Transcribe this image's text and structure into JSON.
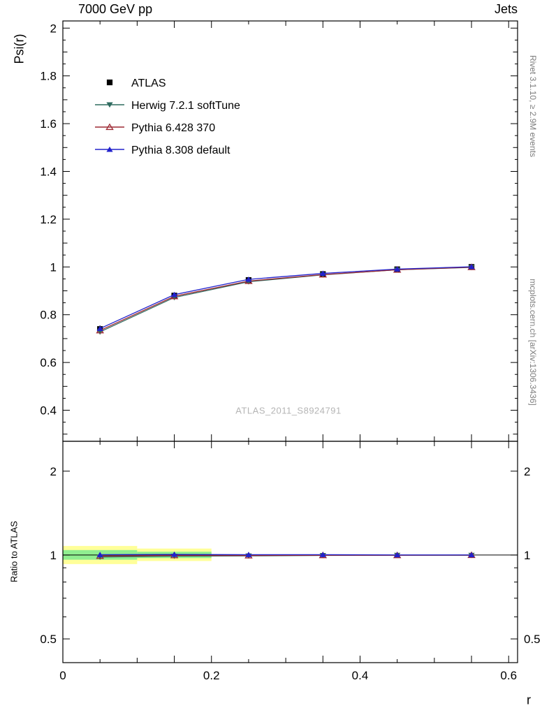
{
  "header": {
    "left": "7000 GeV pp",
    "right": "Jets"
  },
  "side_notes": {
    "top_right": "Rivet 3.1.10, ≥ 2.9M events",
    "bottom_right": "mcplots.cern.ch [arXiv:1306.3436]"
  },
  "watermark": "ATLAS_2011_S8924791",
  "chart_data": {
    "type": "line",
    "xlabel": "r",
    "ylabel": "Psi(r)",
    "ratio_ylabel": "Ratio to ATLAS",
    "x": [
      0.05,
      0.15,
      0.25,
      0.35,
      0.45,
      0.55
    ],
    "xlim": [
      0,
      0.612
    ],
    "xticks": [
      0,
      0.2,
      0.4,
      0.6
    ],
    "main_ylim": [
      0.27,
      2.03
    ],
    "main_yticks": [
      0.4,
      0.6,
      0.8,
      1,
      1.2,
      1.4,
      1.6,
      1.8,
      2
    ],
    "ratio_ylim": [
      0.411,
      2.56
    ],
    "ratio_yticks": [
      0.5,
      1,
      2
    ],
    "ratio_scale": "log",
    "grid": false,
    "legend_position": "top-left",
    "series": [
      {
        "name": "ATLAS",
        "marker": "square",
        "color": "#000000",
        "line": false,
        "values": [
          0.74,
          0.88,
          0.945,
          0.97,
          0.99,
          1.0
        ],
        "errors": [
          0.015,
          0.008,
          0.006,
          0.004,
          0.003,
          0.003
        ]
      },
      {
        "name": "Herwig 7.2.1 softTune",
        "marker": "triangle-down",
        "color": "#2f6b5f",
        "line": true,
        "values": [
          0.728,
          0.872,
          0.938,
          0.967,
          0.988,
          0.998
        ],
        "ratio": [
          0.984,
          0.991,
          0.993,
          0.997,
          0.998,
          0.998
        ]
      },
      {
        "name": "Pythia 6.428 370",
        "marker": "triangle-open",
        "color": "#9d2933",
        "line": true,
        "values": [
          0.734,
          0.877,
          0.941,
          0.968,
          0.988,
          0.999
        ],
        "ratio": [
          0.992,
          0.997,
          0.996,
          0.998,
          0.998,
          0.999
        ]
      },
      {
        "name": "Pythia 8.308 default",
        "marker": "triangle-up",
        "color": "#2222cc",
        "line": true,
        "values": [
          0.742,
          0.884,
          0.948,
          0.973,
          0.991,
          1.001
        ],
        "ratio": [
          1.003,
          1.005,
          1.003,
          1.003,
          1.001,
          1.001
        ]
      }
    ],
    "ratio_bands": [
      {
        "x0": 0.0,
        "x1": 0.1,
        "lo": 0.928,
        "hi": 1.078,
        "color": "#ffff99"
      },
      {
        "x0": 0.1,
        "x1": 0.2,
        "lo": 0.952,
        "hi": 1.055,
        "color": "#ffff99"
      },
      {
        "x0": 0.0,
        "x1": 0.1,
        "lo": 0.962,
        "hi": 1.042,
        "color": "#90ee90"
      },
      {
        "x0": 0.1,
        "x1": 0.2,
        "lo": 0.975,
        "hi": 1.028,
        "color": "#90ee90"
      }
    ]
  }
}
